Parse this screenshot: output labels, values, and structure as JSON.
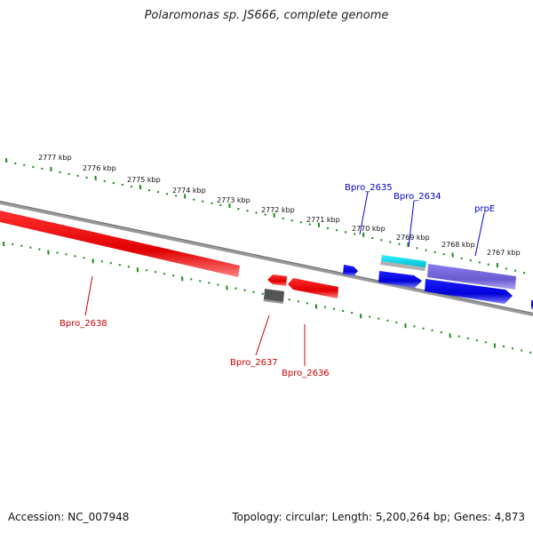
{
  "title": "Polaromonas sp. JS666, complete genome",
  "footer": {
    "accession": "Accession: NC_007948",
    "summary": "Topology: circular; Length: 5,200,264 bp; Genes: 4,873"
  },
  "colors": {
    "backbone": "#808080",
    "tick": "#1a8a1a",
    "forward_label": "#0000cc",
    "reverse_label": "#cc0000",
    "forward_gene": "#0000ff",
    "reverse_gene": "#ff0000",
    "highlight_gene": "#00e5ee",
    "prpE_gene": "#7b68ee",
    "gray_gene": "#555555"
  },
  "scale_labels": [
    "2777 kbp",
    "2776 kbp",
    "2775 kbp",
    "2774 kbp",
    "2773 kbp",
    "2772 kbp",
    "2771 kbp",
    "2770 kbp",
    "2769 kbp",
    "2768 kbp",
    "2767 kbp"
  ],
  "genes": [
    {
      "id": "bpro2638",
      "label": "Bpro_2638",
      "strand": "reverse",
      "color": "#ff0000"
    },
    {
      "id": "bpro2637",
      "label": "Bpro_2637",
      "strand": "reverse",
      "color": "#ff0000"
    },
    {
      "id": "bpro2636",
      "label": "Bpro_2636",
      "strand": "reverse",
      "color": "#ff0000"
    },
    {
      "id": "bpro2635",
      "label": "Bpro_2635",
      "strand": "forward",
      "color": "#0000ff"
    },
    {
      "id": "bpro2634",
      "label": "Bpro_2634",
      "strand": "forward",
      "color": "#0000ff"
    },
    {
      "id": "prpE",
      "label": "prpE",
      "strand": "forward",
      "color": "#0000ff"
    }
  ]
}
